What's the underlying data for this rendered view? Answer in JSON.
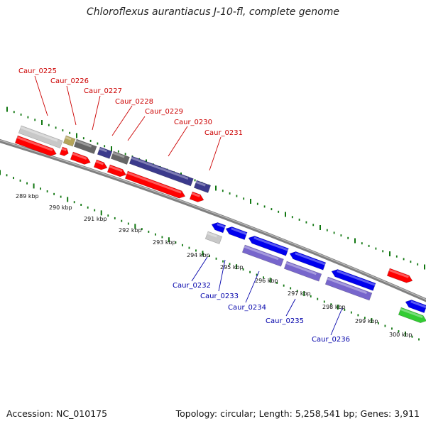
{
  "title": "Chloroflexus aurantiacus J-10-fl, complete genome",
  "footer": {
    "accession": "Accession: NC_010175",
    "topology": "Topology: circular; Length: 5,258,541 bp; Genes: 3,911"
  },
  "colors": {
    "red": "#ff0000",
    "blue": "#0000ee",
    "lavender": "#7766cc",
    "slate": "#3b3a8c",
    "gray_dark": "#666666",
    "gray_light": "#c8c8c8",
    "khaki": "#b5a55a",
    "green": "#33cc33",
    "backbone": "#808080",
    "ticks": "#117711",
    "label_top": "#cc0000",
    "label_bottom": "#0000aa"
  },
  "ticks": [
    {
      "label": "289 kbp"
    },
    {
      "label": "290 kbp"
    },
    {
      "label": "291 kbp"
    },
    {
      "label": "292 kbp"
    },
    {
      "label": "293 kbp"
    },
    {
      "label": "294 kbp"
    },
    {
      "label": "295 kbp"
    },
    {
      "label": "296 kbp"
    },
    {
      "label": "297 kbp"
    },
    {
      "label": "298 kbp"
    },
    {
      "label": "299 kbp"
    },
    {
      "label": "300 kbp"
    }
  ],
  "labels_top": [
    {
      "text": "Caur_0225"
    },
    {
      "text": "Caur_0226"
    },
    {
      "text": "Caur_0227"
    },
    {
      "text": "Caur_0228"
    },
    {
      "text": "Caur_0229"
    },
    {
      "text": "Caur_0230"
    },
    {
      "text": "Caur_0231"
    }
  ],
  "labels_bottom": [
    {
      "text": "Caur_0232"
    },
    {
      "text": "Caur_0233"
    },
    {
      "text": "Caur_0234"
    },
    {
      "text": "Caur_0235"
    },
    {
      "text": "Caur_0236"
    }
  ]
}
